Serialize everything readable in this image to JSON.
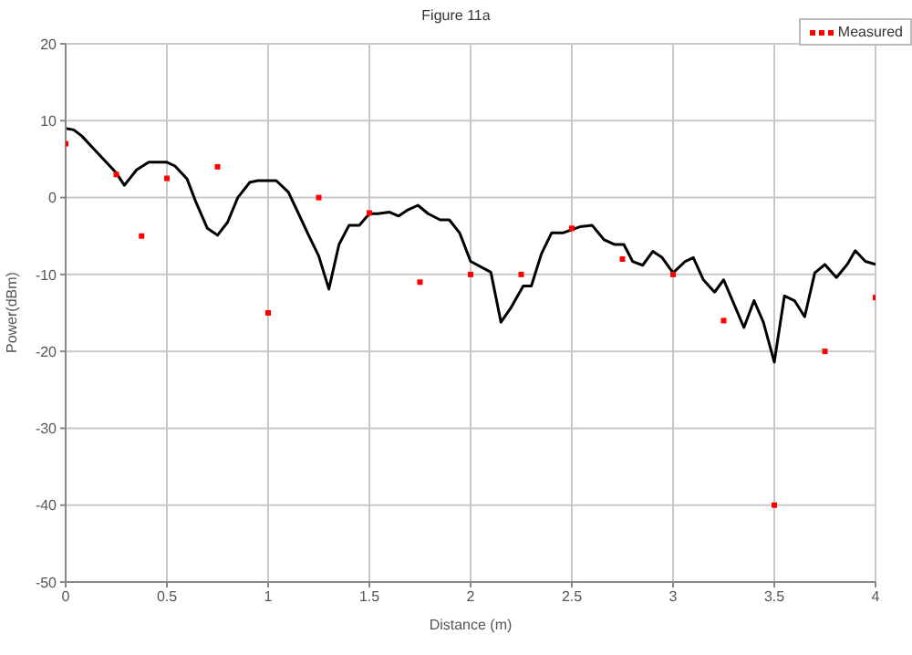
{
  "chart_data": {
    "type": "line",
    "title": "Figure 11a",
    "xlabel": "Distance (m)",
    "ylabel": "Power(dBm)",
    "xlim": [
      0,
      4
    ],
    "xticks": [
      0,
      0.5,
      1,
      1.5,
      2,
      2.5,
      3,
      3.5,
      4
    ],
    "ylim": [
      -50,
      20
    ],
    "yticks": [
      -50,
      -40,
      -30,
      -20,
      -10,
      0,
      10,
      20
    ],
    "grid": true,
    "legend": "top right",
    "series": [
      {
        "color": "#000000",
        "marker": "none",
        "line_style": "solid",
        "x": [
          0,
          0.04,
          0.08,
          0.14,
          0.25,
          0.29,
          0.35,
          0.41,
          0.5,
          0.54,
          0.6,
          0.645,
          0.7,
          0.75,
          0.8,
          0.85,
          0.91,
          0.95,
          1.04,
          1.1,
          1.145,
          1.2,
          1.25,
          1.3,
          1.35,
          1.4,
          1.45,
          1.5,
          1.54,
          1.6,
          1.645,
          1.69,
          1.74,
          1.79,
          1.85,
          1.895,
          1.946,
          2.0,
          2.1,
          2.15,
          2.2,
          2.26,
          2.3,
          2.35,
          2.4,
          2.455,
          2.54,
          2.6,
          2.66,
          2.71,
          2.757,
          2.8,
          2.85,
          2.9,
          2.946,
          3.0,
          3.06,
          3.1,
          3.15,
          3.205,
          3.25,
          3.3,
          3.35,
          3.4,
          3.446,
          3.5,
          3.55,
          3.6,
          3.65,
          3.7,
          3.75,
          3.807,
          3.86,
          3.9,
          3.95,
          4.0
        ],
        "values": [
          9.0,
          8.8,
          8.0,
          6.3,
          3.2,
          1.6,
          3.6,
          4.6,
          4.6,
          4.1,
          2.4,
          -0.7,
          -4.0,
          -4.9,
          -3.2,
          0.0,
          2.0,
          2.2,
          2.2,
          0.7,
          -1.8,
          -4.9,
          -7.6,
          -11.9,
          -6.1,
          -3.6,
          -3.6,
          -2.1,
          -2.1,
          -1.9,
          -2.4,
          -1.6,
          -1.0,
          -2.1,
          -2.9,
          -2.9,
          -4.6,
          -8.3,
          -9.7,
          -16.2,
          -14.3,
          -11.5,
          -11.5,
          -7.3,
          -4.6,
          -4.6,
          -3.8,
          -3.6,
          -5.5,
          -6.1,
          -6.1,
          -8.3,
          -8.8,
          -7.0,
          -7.8,
          -9.8,
          -8.3,
          -7.8,
          -10.7,
          -12.3,
          -10.7,
          -13.8,
          -16.9,
          -13.4,
          -16.2,
          -21.4,
          -12.8,
          -13.4,
          -15.5,
          -9.8,
          -8.7,
          -10.4,
          -8.7,
          -6.9,
          -8.3,
          -8.7
        ]
      },
      {
        "type": "scatter",
        "name": "Measured",
        "color": "#ff0000",
        "marker": "square",
        "x": [
          0,
          0.25,
          0.375,
          0.5,
          0.75,
          1,
          1.25,
          1.5,
          1.75,
          2,
          2.25,
          2.5,
          2.75,
          3,
          3.25,
          3.5,
          3.75,
          4
        ],
        "values": [
          7,
          3,
          -5,
          2.5,
          4,
          -15,
          0,
          -2,
          -11,
          -10,
          -10,
          -4,
          -8,
          -10,
          -16,
          -40,
          -20,
          -13
        ]
      }
    ]
  }
}
